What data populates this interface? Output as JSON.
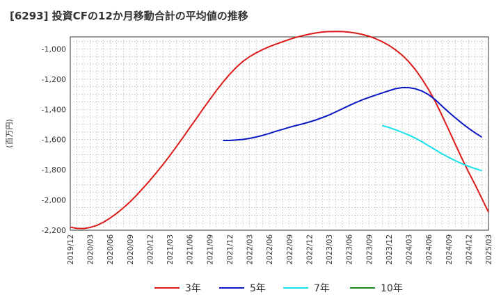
{
  "chart_data": {
    "type": "line",
    "title": "[6293]  投資CFの12か月移動合計の平均値の推移",
    "ylabel": "(百万円)",
    "xlabel": "",
    "ylim": [
      -2200,
      -920
    ],
    "yticks": [
      -1000,
      -1200,
      -1400,
      -1600,
      -1800,
      -2000,
      -2200
    ],
    "ytick_labels": [
      "-1,000",
      "-1,200",
      "-1,400",
      "-1,600",
      "-1,800",
      "-2,000",
      "-2,200"
    ],
    "xlim": [
      "2019-12",
      "2025-03"
    ],
    "xticks": [
      "2019/12",
      "2020/03",
      "2020/06",
      "2020/09",
      "2020/12",
      "2021/03",
      "2021/06",
      "2021/09",
      "2021/12",
      "2022/03",
      "2022/06",
      "2022/09",
      "2022/12",
      "2023/03",
      "2023/06",
      "2023/09",
      "2023/12",
      "2024/03",
      "2024/06",
      "2024/09",
      "2024/12",
      "2025/03"
    ],
    "grid": true,
    "legend_position": "bottom",
    "series": [
      {
        "name": "3年",
        "color": "#dd1a1a",
        "points": [
          [
            "2019-12",
            -2180
          ],
          [
            "2020-01",
            -2188
          ],
          [
            "2020-02",
            -2189
          ],
          [
            "2020-03",
            -2182
          ],
          [
            "2020-04",
            -2168
          ],
          [
            "2020-05",
            -2147
          ],
          [
            "2020-06",
            -2120
          ],
          [
            "2020-07",
            -2088
          ],
          [
            "2020-08",
            -2052
          ],
          [
            "2020-09",
            -2012
          ],
          [
            "2020-10",
            -1968
          ],
          [
            "2020-11",
            -1920
          ],
          [
            "2020-12",
            -1870
          ],
          [
            "2021-01",
            -1818
          ],
          [
            "2021-02",
            -1763
          ],
          [
            "2021-03",
            -1706
          ],
          [
            "2021-04",
            -1646
          ],
          [
            "2021-05",
            -1585
          ],
          [
            "2021-06",
            -1522
          ],
          [
            "2021-07",
            -1460
          ],
          [
            "2021-08",
            -1397
          ],
          [
            "2021-09",
            -1336
          ],
          [
            "2021-10",
            -1276
          ],
          [
            "2021-11",
            -1220
          ],
          [
            "2021-12",
            -1168
          ],
          [
            "2022-01",
            -1122
          ],
          [
            "2022-02",
            -1083
          ],
          [
            "2022-03",
            -1051
          ],
          [
            "2022-04",
            -1026
          ],
          [
            "2022-05",
            -1004
          ],
          [
            "2022-06",
            -985
          ],
          [
            "2022-07",
            -968
          ],
          [
            "2022-08",
            -952
          ],
          [
            "2022-09",
            -937
          ],
          [
            "2022-10",
            -923
          ],
          [
            "2022-11",
            -912
          ],
          [
            "2022-12",
            -902
          ],
          [
            "2023-01",
            -894
          ],
          [
            "2023-02",
            -888
          ],
          [
            "2023-03",
            -885
          ],
          [
            "2023-04",
            -884
          ],
          [
            "2023-05",
            -885
          ],
          [
            "2023-06",
            -889
          ],
          [
            "2023-07",
            -895
          ],
          [
            "2023-08",
            -904
          ],
          [
            "2023-09",
            -916
          ],
          [
            "2023-10",
            -932
          ],
          [
            "2023-11",
            -952
          ],
          [
            "2023-12",
            -976
          ],
          [
            "2024-01",
            -1006
          ],
          [
            "2024-02",
            -1041
          ],
          [
            "2024-03",
            -1085
          ],
          [
            "2024-04",
            -1138
          ],
          [
            "2024-05",
            -1200
          ],
          [
            "2024-06",
            -1270
          ],
          [
            "2024-07",
            -1350
          ],
          [
            "2024-08",
            -1440
          ],
          [
            "2024-09",
            -1535
          ],
          [
            "2024-10",
            -1630
          ],
          [
            "2024-11",
            -1725
          ],
          [
            "2024-12",
            -1815
          ],
          [
            "2025-01",
            -1900
          ],
          [
            "2025-02",
            -1990
          ],
          [
            "2025-03",
            -2080
          ]
        ]
      },
      {
        "name": "5年",
        "color": "#0a18c4",
        "points": [
          [
            "2021-11",
            -1606
          ],
          [
            "2021-12",
            -1606
          ],
          [
            "2022-01",
            -1603
          ],
          [
            "2022-02",
            -1599
          ],
          [
            "2022-03",
            -1592
          ],
          [
            "2022-04",
            -1583
          ],
          [
            "2022-05",
            -1572
          ],
          [
            "2022-06",
            -1559
          ],
          [
            "2022-07",
            -1545
          ],
          [
            "2022-08",
            -1532
          ],
          [
            "2022-09",
            -1519
          ],
          [
            "2022-10",
            -1507
          ],
          [
            "2022-11",
            -1496
          ],
          [
            "2022-12",
            -1484
          ],
          [
            "2023-01",
            -1470
          ],
          [
            "2023-02",
            -1454
          ],
          [
            "2023-03",
            -1437
          ],
          [
            "2023-04",
            -1417
          ],
          [
            "2023-05",
            -1396
          ],
          [
            "2023-06",
            -1375
          ],
          [
            "2023-07",
            -1355
          ],
          [
            "2023-08",
            -1337
          ],
          [
            "2023-09",
            -1321
          ],
          [
            "2023-10",
            -1306
          ],
          [
            "2023-11",
            -1291
          ],
          [
            "2023-12",
            -1277
          ],
          [
            "2024-01",
            -1263
          ],
          [
            "2024-02",
            -1256
          ],
          [
            "2024-03",
            -1256
          ],
          [
            "2024-04",
            -1264
          ],
          [
            "2024-05",
            -1279
          ],
          [
            "2024-06",
            -1303
          ],
          [
            "2024-07",
            -1337
          ],
          [
            "2024-08",
            -1378
          ],
          [
            "2024-09",
            -1418
          ],
          [
            "2024-10",
            -1456
          ],
          [
            "2024-11",
            -1492
          ],
          [
            "2024-12",
            -1525
          ],
          [
            "2025-01",
            -1556
          ],
          [
            "2025-02",
            -1584
          ]
        ]
      },
      {
        "name": "7年",
        "color": "#16e1ea",
        "points": [
          [
            "2023-11",
            -1507
          ],
          [
            "2023-12",
            -1520
          ],
          [
            "2024-01",
            -1535
          ],
          [
            "2024-02",
            -1552
          ],
          [
            "2024-03",
            -1570
          ],
          [
            "2024-04",
            -1591
          ],
          [
            "2024-05",
            -1615
          ],
          [
            "2024-06",
            -1641
          ],
          [
            "2024-07",
            -1668
          ],
          [
            "2024-08",
            -1694
          ],
          [
            "2024-09",
            -1718
          ],
          [
            "2024-10",
            -1740
          ],
          [
            "2024-11",
            -1760
          ],
          [
            "2024-12",
            -1777
          ],
          [
            "2025-01",
            -1792
          ],
          [
            "2025-02",
            -1806
          ]
        ]
      },
      {
        "name": "10年",
        "color": "#1a8a1a",
        "points": []
      }
    ]
  }
}
